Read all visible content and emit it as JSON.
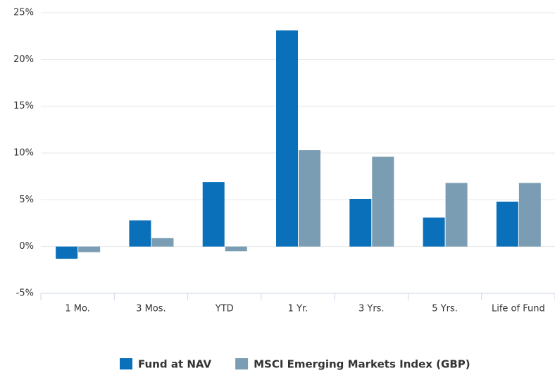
{
  "chart_data": {
    "type": "bar",
    "categories": [
      "1 Mo.",
      "3 Mos.",
      "YTD",
      "1 Yr.",
      "3 Yrs.",
      "5 Yrs.",
      "Life of Fund"
    ],
    "series": [
      {
        "name": "Fund at NAV",
        "color": "#0a70b9",
        "values": [
          -1.3,
          2.8,
          6.9,
          23.1,
          5.1,
          3.1,
          4.8
        ]
      },
      {
        "name": "MSCI Emerging Markets Index (GBP)",
        "color": "#7a9db3",
        "values": [
          -0.6,
          0.9,
          -0.5,
          10.3,
          9.6,
          6.8,
          6.8
        ]
      }
    ],
    "ylim": [
      -5,
      25
    ],
    "yticks": [
      {
        "value": -5,
        "label": "-5%"
      },
      {
        "value": 0,
        "label": "0%"
      },
      {
        "value": 5,
        "label": "5%"
      },
      {
        "value": 10,
        "label": "10%"
      },
      {
        "value": 15,
        "label": "15%"
      },
      {
        "value": 20,
        "label": "20%"
      },
      {
        "value": 25,
        "label": "25%"
      }
    ],
    "grid": true,
    "legend": "bottom"
  }
}
